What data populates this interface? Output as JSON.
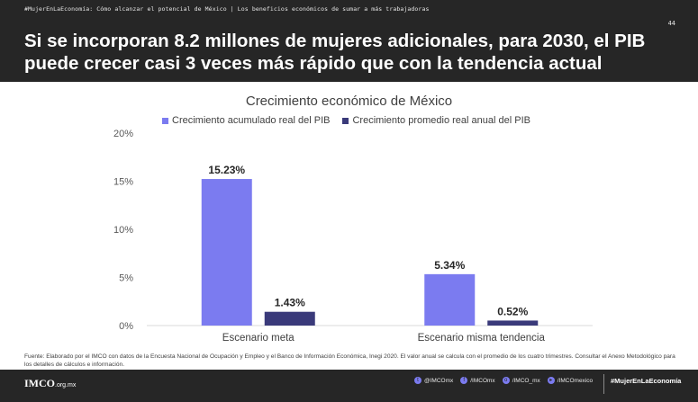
{
  "header": {
    "crumb_left": "#MujerEnLaEconomía: Cómo alcanzar el potencial de México",
    "crumb_sep": "|",
    "crumb_right": "Los beneficios económicos de sumar a más trabajadoras",
    "page_number": "44",
    "title": "Si se incorporan 8.2 millones de mujeres adicionales, para 2030, el PIB puede crecer casi 3 veces más rápido que con la tendencia actual"
  },
  "chart_data": {
    "type": "bar",
    "title": "Crecimiento económico de México",
    "categories": [
      "Escenario meta",
      "Escenario misma tendencia"
    ],
    "series": [
      {
        "name": "Crecimiento acumulado real del PIB",
        "values": [
          15.23,
          5.34
        ],
        "labels": [
          "15.23%",
          "5.34%"
        ],
        "color": "#7b7bf0"
      },
      {
        "name": "Crecimiento promedio real anual del PIB",
        "values": [
          1.43,
          0.52
        ],
        "labels": [
          "1.43%",
          "0.52%"
        ],
        "color": "#3a3a7a"
      }
    ],
    "ylim": [
      0,
      20
    ],
    "yticks": [
      0,
      5,
      10,
      15,
      20
    ],
    "ytick_labels": [
      "0%",
      "5%",
      "10%",
      "15%",
      "20%"
    ],
    "grid": false,
    "legend": "top"
  },
  "source": "Fuente: Elaborado por el IMCO con datos de la Encuesta Nacional de Ocupación y Empleo y el Banco de Información Económica, Inegi 2020. El valor anual se calcula con el promedio de los cuatro trimestres. Consultar el Anexo Metodológico para los detalles de cálculos e información.",
  "footer": {
    "logo": "IMCO",
    "logo_domain": ".org.mx",
    "socials": [
      {
        "icon": "twitter-icon",
        "glyph": "t",
        "label": "@IMCOmx"
      },
      {
        "icon": "facebook-icon",
        "glyph": "f",
        "label": "/IMCOmx"
      },
      {
        "icon": "instagram-icon",
        "glyph": "o",
        "label": "/IMCO_mx"
      },
      {
        "icon": "youtube-icon",
        "glyph": "▸",
        "label": "/IMCOmexico"
      }
    ],
    "hashtag": "#MujerEnLaEconomía"
  }
}
